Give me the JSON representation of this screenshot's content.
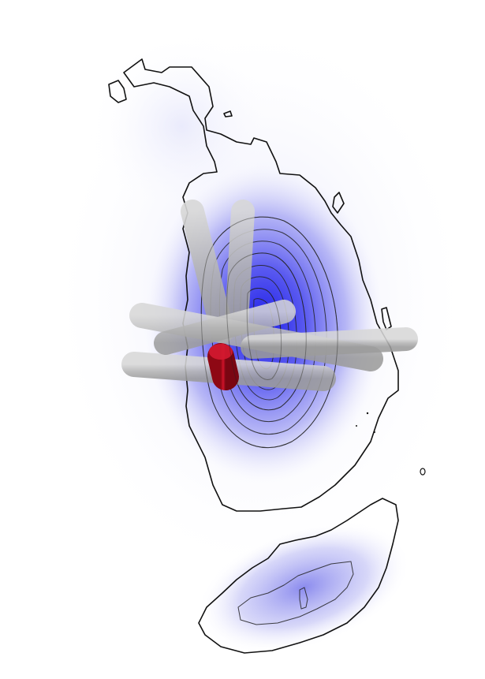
{
  "figure": {
    "description_free": true,
    "colors": {
      "density": "#2a2ae6",
      "density_light": "#c9c9f5",
      "contour": "#111111",
      "rod": "#b8b8b8",
      "highlight": "#c0101e"
    }
  }
}
